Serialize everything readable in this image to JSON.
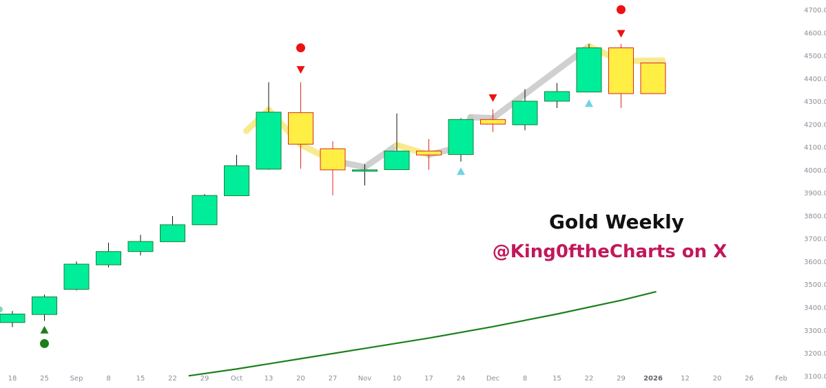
{
  "caption": {
    "title": "Gold Weekly",
    "handle": "@King0ftheCharts on X"
  },
  "colors": {
    "bull_fill": "#00ee99",
    "bull_border": "#1a7f37",
    "bear_fill": "#ffee44",
    "bear_border": "#e0241b",
    "wick_bull": "#111111",
    "wick_bear": "#e0241b",
    "sma_line": "#1b7f1b",
    "signal_red": "#ee1111",
    "signal_green": "#1b7f1b",
    "signal_cyan": "#6fd3e6",
    "ribbon_yellow": "#f7e87a",
    "ribbon_grey": "#c8c8c8",
    "axis_text": "#8a8e99"
  },
  "chart_data": {
    "type": "candlestick",
    "title": "Gold Weekly",
    "y_axis": {
      "position": "right",
      "ylim": [
        3095,
        4718
      ],
      "ticks": [
        "4700.0",
        "4600.0",
        "4500.0",
        "4400.0",
        "4300.0",
        "4200.0",
        "4100.0",
        "4000.0",
        "3900.0",
        "3800.0",
        "3700.0",
        "3600.0",
        "3500.0",
        "3400.0",
        "3300.0",
        "3200.0",
        "3100.0"
      ]
    },
    "x_axis": {
      "labels": [
        "18",
        "25",
        "Sep",
        "8",
        "15",
        "22",
        "29",
        "Oct",
        "13",
        "20",
        "27",
        "Nov",
        "10",
        "17",
        "24",
        "Dec",
        "8",
        "15",
        "22",
        "29",
        "2026",
        "12",
        "20",
        "26",
        "Feb"
      ],
      "bold_labels": [
        "2026"
      ]
    },
    "candles": [
      {
        "open": 3333,
        "high": 3383,
        "low": 3313,
        "close": 3370
      },
      {
        "open": 3368,
        "high": 3455,
        "low": 3340,
        "close": 3445
      },
      {
        "open": 3478,
        "high": 3600,
        "low": 3473,
        "close": 3588
      },
      {
        "open": 3585,
        "high": 3682,
        "low": 3574,
        "close": 3643
      },
      {
        "open": 3643,
        "high": 3716,
        "low": 3626,
        "close": 3687
      },
      {
        "open": 3686,
        "high": 3798,
        "low": 3686,
        "close": 3760
      },
      {
        "open": 3760,
        "high": 3894,
        "low": 3760,
        "close": 3888
      },
      {
        "open": 3887,
        "high": 4065,
        "low": 3887,
        "close": 4018
      },
      {
        "open": 4003,
        "high": 4383,
        "low": 4000,
        "close": 4252
      },
      {
        "open": 4250,
        "high": 4383,
        "low": 4005,
        "close": 4112
      },
      {
        "open": 4092,
        "high": 4125,
        "low": 3889,
        "close": 4000
      },
      {
        "open": 4000,
        "high": 4024,
        "low": 3932,
        "close": 4000
      },
      {
        "open": 4001,
        "high": 4246,
        "low": 4000,
        "close": 4082
      },
      {
        "open": 4082,
        "high": 4135,
        "low": 4000,
        "close": 4065
      },
      {
        "open": 4067,
        "high": 4226,
        "low": 4036,
        "close": 4220
      },
      {
        "open": 4220,
        "high": 4264,
        "low": 4165,
        "close": 4200
      },
      {
        "open": 4197,
        "high": 4353,
        "low": 4173,
        "close": 4300
      },
      {
        "open": 4300,
        "high": 4379,
        "low": 4270,
        "close": 4342
      },
      {
        "open": 4340,
        "high": 4550,
        "low": 4340,
        "close": 4533
      },
      {
        "open": 4533,
        "high": 4550,
        "low": 4270,
        "close": 4333
      },
      {
        "open": 4467,
        "high": 4467,
        "low": 4333,
        "close": 4333
      }
    ],
    "sma": [
      {
        "x": 5.5,
        "y": 3100
      },
      {
        "x": 7,
        "y": 3130
      },
      {
        "x": 9,
        "y": 3175
      },
      {
        "x": 11,
        "y": 3220
      },
      {
        "x": 13,
        "y": 3265
      },
      {
        "x": 15,
        "y": 3315
      },
      {
        "x": 17,
        "y": 3370
      },
      {
        "x": 19,
        "y": 3430
      },
      {
        "x": 20.1,
        "y": 3468
      }
    ],
    "ribbon": [
      {
        "x": -1.2,
        "y": 3390,
        "color": "#5fd3a6"
      },
      {
        "x": -0.4,
        "y": 3390,
        "color": "#5fd3a6"
      },
      {
        "x": 7.3,
        "y": 4170,
        "color": "#f7e87a"
      },
      {
        "x": 8,
        "y": 4262,
        "color": "#f7e87a"
      },
      {
        "x": 9,
        "y": 4110,
        "color": "#f7e87a"
      },
      {
        "x": 10,
        "y": 4040,
        "color": "#c8c8c8"
      },
      {
        "x": 11,
        "y": 4012,
        "color": "#c8c8c8"
      },
      {
        "x": 12,
        "y": 4108,
        "color": "#f7e87a"
      },
      {
        "x": 13,
        "y": 4066,
        "color": "#c8c8c8"
      },
      {
        "x": 14,
        "y": 4100,
        "color": "#c8c8c8"
      },
      {
        "x": 14.3,
        "y": 4230,
        "color": "#c8c8c8"
      },
      {
        "x": 15,
        "y": 4226,
        "color": "#c8c8c8"
      },
      {
        "x": 18,
        "y": 4540,
        "color": "#f7e87a"
      },
      {
        "x": 19,
        "y": 4475,
        "color": "#f7e87a"
      },
      {
        "x": 20.3,
        "y": 4478,
        "color": "#f7e87a"
      }
    ],
    "markers": [
      {
        "candle": 1,
        "shape": "triangle-up",
        "color": "#1b7f1b",
        "y": 3300
      },
      {
        "candle": 1,
        "shape": "circle",
        "color": "#1b7f1b",
        "y": 3241
      },
      {
        "candle": 9,
        "shape": "triangle-down",
        "color": "#ee1111",
        "y": 4438
      },
      {
        "candle": 9,
        "shape": "circle",
        "color": "#ee1111",
        "y": 4533
      },
      {
        "candle": 14,
        "shape": "triangle-up",
        "color": "#6fd3e6",
        "y": 3993
      },
      {
        "candle": 15,
        "shape": "triangle-down",
        "color": "#ee1111",
        "y": 4315
      },
      {
        "candle": 18,
        "shape": "triangle-up",
        "color": "#6fd3e6",
        "y": 4290
      },
      {
        "candle": 19,
        "shape": "triangle-down",
        "color": "#ee1111",
        "y": 4596
      },
      {
        "candle": 19,
        "shape": "circle",
        "color": "#ee1111",
        "y": 4700
      }
    ]
  }
}
